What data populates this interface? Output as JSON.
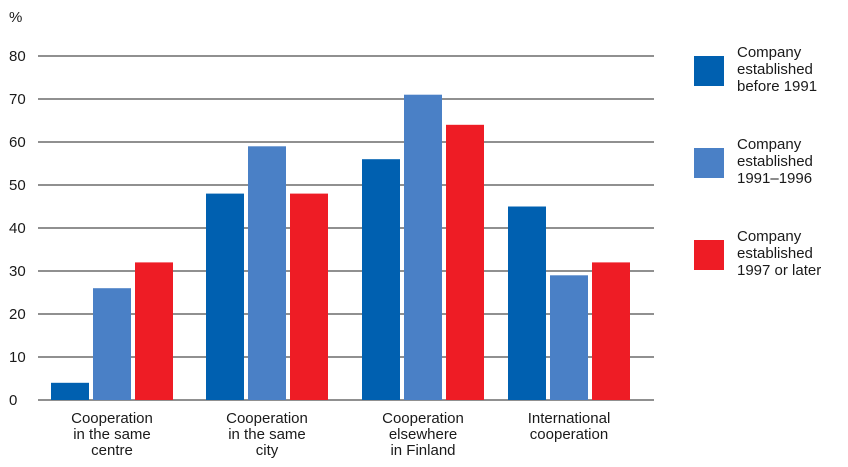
{
  "chart_data": {
    "type": "bar",
    "ylabel": "%",
    "ylim": [
      0,
      80
    ],
    "yticks": [
      0,
      10,
      20,
      30,
      40,
      50,
      60,
      70,
      80
    ],
    "grid": true,
    "legend_position": "right",
    "categories": [
      "Cooperation\nin the same\ncentre",
      "Cooperation\nin the same\ncity",
      "Cooperation\nelsewhere\nin Finland",
      "International\ncooperation"
    ],
    "series": [
      {
        "name": "Company\nestablished\nbefore 1991",
        "color": "#0060B0",
        "values": [
          4,
          48,
          56,
          45
        ]
      },
      {
        "name": "Company\nestablished\n1991–1996",
        "color": "#4A80C6",
        "values": [
          26,
          59,
          71,
          29
        ]
      },
      {
        "name": "Company\nestablished\n1997 or later",
        "color": "#EE1C25",
        "values": [
          32,
          48,
          64,
          32
        ]
      }
    ]
  }
}
